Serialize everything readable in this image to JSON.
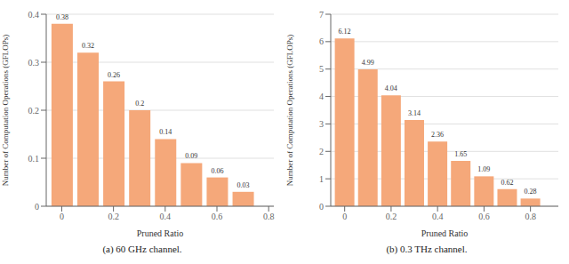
{
  "chart_data": [
    {
      "type": "bar",
      "title": "(a)  60 GHz channel.",
      "x": [
        0,
        0.1,
        0.2,
        0.3,
        0.4,
        0.5,
        0.6,
        0.7
      ],
      "values": [
        0.38,
        0.32,
        0.26,
        0.2,
        0.14,
        0.09,
        0.06,
        0.03
      ],
      "color": "#F5A87A",
      "xlabel": "Pruned Ratio",
      "ylabel": "Number of Computation Operations (GFLOPs)",
      "xlim": [
        -0.06,
        0.82
      ],
      "xticks": [
        0,
        0.2,
        0.4,
        0.6,
        0.8
      ],
      "ylim": [
        0,
        0.4
      ],
      "yticks": [
        0,
        0.1,
        0.2,
        0.3,
        0.4
      ],
      "grid": true,
      "data_labels": true
    },
    {
      "type": "bar",
      "title": "(b)  0.3 THz channel.",
      "x": [
        0,
        0.1,
        0.2,
        0.3,
        0.4,
        0.5,
        0.6,
        0.7,
        0.8
      ],
      "values": [
        6.12,
        4.99,
        4.04,
        3.14,
        2.36,
        1.65,
        1.09,
        0.62,
        0.28
      ],
      "color": "#F5A87A",
      "xlabel": "Pruned Ratio",
      "ylabel": "Number of Computation Operations (GFLOPs)",
      "xlim": [
        -0.06,
        0.92
      ],
      "xticks": [
        0,
        0.2,
        0.4,
        0.6,
        0.8
      ],
      "ylim": [
        0,
        7
      ],
      "yticks": [
        0,
        1,
        2,
        3,
        4,
        5,
        6,
        7
      ],
      "grid": true,
      "data_labels": true
    }
  ]
}
